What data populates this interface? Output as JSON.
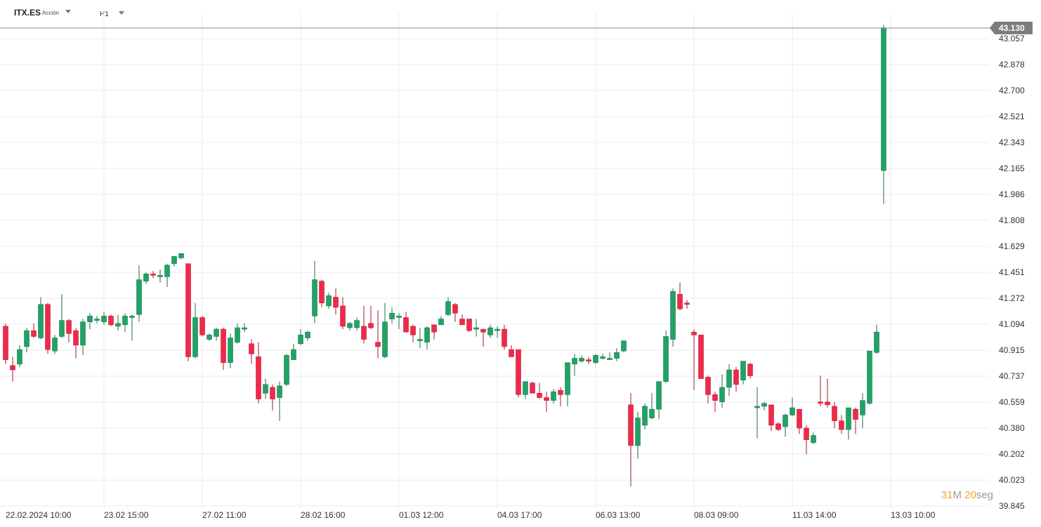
{
  "toolbar": {
    "symbol": "ITX.ES",
    "instrument_type": "Acción",
    "timeframe": "H1"
  },
  "price_label": "43.130",
  "countdown": {
    "minutes": "31",
    "minutes_unit": "M",
    "seconds": "20",
    "seconds_unit": "seg"
  },
  "colors": {
    "up": "#21a366",
    "down": "#ee2a4a",
    "grid": "#ebebeb",
    "axis_text": "#333333",
    "price_line": "#8a8a8a",
    "price_label_bg": "#7c7c7c"
  },
  "chart_data": {
    "type": "candlestick",
    "title": "",
    "ylim": [
      39.845,
      43.23
    ],
    "y_ticks": [
      "43.057",
      "42.878",
      "42.700",
      "42.521",
      "42.343",
      "42.165",
      "41.986",
      "41.808",
      "41.629",
      "41.451",
      "41.272",
      "41.094",
      "40.915",
      "40.737",
      "40.559",
      "40.380",
      "40.202",
      "40.023",
      "39.845"
    ],
    "x_ticks": [
      {
        "date": "22.02.2024",
        "time": "10:00",
        "index": 0
      },
      {
        "date": "23.02",
        "time": "15:00",
        "index": 14
      },
      {
        "date": "27.02",
        "time": "11:00",
        "index": 28
      },
      {
        "date": "28.02",
        "time": "16:00",
        "index": 42
      },
      {
        "date": "01.03",
        "time": "12:00",
        "index": 56
      },
      {
        "date": "04.03",
        "time": "17:00",
        "index": 70
      },
      {
        "date": "06.03",
        "time": "13:00",
        "index": 84
      },
      {
        "date": "08.03",
        "time": "09:00",
        "index": 98
      },
      {
        "date": "11.03",
        "time": "14:00",
        "index": 112
      },
      {
        "date": "13.03",
        "time": "10:00",
        "index": 126
      }
    ],
    "ohlc": [
      [
        41.08,
        41.1,
        40.82,
        40.85
      ],
      [
        40.81,
        40.87,
        40.7,
        40.78
      ],
      [
        40.82,
        40.95,
        40.8,
        40.92
      ],
      [
        40.94,
        41.07,
        40.9,
        41.05
      ],
      [
        41.05,
        41.1,
        41.0,
        41.01
      ],
      [
        41.0,
        41.28,
        40.99,
        41.23
      ],
      [
        41.23,
        41.24,
        40.89,
        40.92
      ],
      [
        40.91,
        41.02,
        40.89,
        41.0
      ],
      [
        41.01,
        41.3,
        41.0,
        41.12
      ],
      [
        41.12,
        41.13,
        40.97,
        41.03
      ],
      [
        41.05,
        41.07,
        40.86,
        40.95
      ],
      [
        40.95,
        41.13,
        40.88,
        41.11
      ],
      [
        41.11,
        41.17,
        41.06,
        41.15
      ],
      [
        41.12,
        41.15,
        41.1,
        41.13
      ],
      [
        41.11,
        41.18,
        41.09,
        41.15
      ],
      [
        41.15,
        41.16,
        41.08,
        41.09
      ],
      [
        41.08,
        41.16,
        41.05,
        41.1
      ],
      [
        41.09,
        41.17,
        41.04,
        41.15
      ],
      [
        41.14,
        41.16,
        40.98,
        41.15
      ],
      [
        41.16,
        41.5,
        41.11,
        41.4
      ],
      [
        41.39,
        41.45,
        41.37,
        41.44
      ],
      [
        41.44,
        41.46,
        41.41,
        41.43
      ],
      [
        41.42,
        41.47,
        41.38,
        41.43
      ],
      [
        41.42,
        41.51,
        41.35,
        41.5
      ],
      [
        41.51,
        41.56,
        41.49,
        41.56
      ],
      [
        41.55,
        41.58,
        41.54,
        41.58
      ],
      [
        41.51,
        41.51,
        40.84,
        40.87
      ],
      [
        40.87,
        41.24,
        40.86,
        41.14
      ],
      [
        41.14,
        41.15,
        41.01,
        41.02
      ],
      [
        40.99,
        41.03,
        40.98,
        41.02
      ],
      [
        41.01,
        41.07,
        40.98,
        41.06
      ],
      [
        41.06,
        41.07,
        40.78,
        40.83
      ],
      [
        40.83,
        41.03,
        40.79,
        41.0
      ],
      [
        40.97,
        41.1,
        40.96,
        41.07
      ],
      [
        41.06,
        41.1,
        41.04,
        41.07
      ],
      [
        40.96,
        40.99,
        40.82,
        40.89
      ],
      [
        40.87,
        40.97,
        40.55,
        40.58
      ],
      [
        40.62,
        40.72,
        40.58,
        40.68
      ],
      [
        40.66,
        40.68,
        40.5,
        40.58
      ],
      [
        40.59,
        40.7,
        40.43,
        40.67
      ],
      [
        40.68,
        40.89,
        40.67,
        40.88
      ],
      [
        40.85,
        40.96,
        40.85,
        40.92
      ],
      [
        40.96,
        41.06,
        40.95,
        41.02
      ],
      [
        41.0,
        41.05,
        40.98,
        41.04
      ],
      [
        41.15,
        41.53,
        41.1,
        41.4
      ],
      [
        41.39,
        41.4,
        41.21,
        41.24
      ],
      [
        41.22,
        41.31,
        41.2,
        41.29
      ],
      [
        41.28,
        41.34,
        41.16,
        41.21
      ],
      [
        41.22,
        41.28,
        41.06,
        41.08
      ],
      [
        41.07,
        41.11,
        41.05,
        41.1
      ],
      [
        41.07,
        41.14,
        41.05,
        41.12
      ],
      [
        41.08,
        41.22,
        40.96,
        40.99
      ],
      [
        41.1,
        41.22,
        41.06,
        41.07
      ],
      [
        40.97,
        41.19,
        40.86,
        40.94
      ],
      [
        40.87,
        41.24,
        40.86,
        41.11
      ],
      [
        41.13,
        41.21,
        41.1,
        41.17
      ],
      [
        41.15,
        41.17,
        41.06,
        41.15
      ],
      [
        41.14,
        41.18,
        41.04,
        41.04
      ],
      [
        41.08,
        41.09,
        40.97,
        41.02
      ],
      [
        40.98,
        41.07,
        40.93,
        40.99
      ],
      [
        40.97,
        41.08,
        40.92,
        41.07
      ],
      [
        41.09,
        41.09,
        40.99,
        41.04
      ],
      [
        41.09,
        41.15,
        41.09,
        41.13
      ],
      [
        41.16,
        41.28,
        41.15,
        41.25
      ],
      [
        41.23,
        41.24,
        41.11,
        41.17
      ],
      [
        41.13,
        41.16,
        41.09,
        41.09
      ],
      [
        41.13,
        41.13,
        41.04,
        41.05
      ],
      [
        41.06,
        41.13,
        41.01,
        41.07
      ],
      [
        41.06,
        41.06,
        40.94,
        41.04
      ],
      [
        41.02,
        41.09,
        41.0,
        41.07
      ],
      [
        41.05,
        41.08,
        41.0,
        41.06
      ],
      [
        41.06,
        41.09,
        40.92,
        40.94
      ],
      [
        40.92,
        40.95,
        40.87,
        40.87
      ],
      [
        40.92,
        40.92,
        40.59,
        40.61
      ],
      [
        40.61,
        40.7,
        40.58,
        40.7
      ],
      [
        40.69,
        40.7,
        40.62,
        40.62
      ],
      [
        40.62,
        40.69,
        40.58,
        40.59
      ],
      [
        40.59,
        40.63,
        40.49,
        40.57
      ],
      [
        40.57,
        40.65,
        40.55,
        40.63
      ],
      [
        40.64,
        40.66,
        40.53,
        40.61
      ],
      [
        40.61,
        40.81,
        40.53,
        40.83
      ],
      [
        40.82,
        40.89,
        40.74,
        40.86
      ],
      [
        40.84,
        40.88,
        40.83,
        40.86
      ],
      [
        40.85,
        40.87,
        40.82,
        40.84
      ],
      [
        40.83,
        40.89,
        40.82,
        40.88
      ],
      [
        40.86,
        40.89,
        40.85,
        40.87
      ],
      [
        40.86,
        40.9,
        40.85,
        40.86
      ],
      [
        40.86,
        40.93,
        40.84,
        40.9
      ],
      [
        40.91,
        40.98,
        40.9,
        40.98
      ],
      [
        40.54,
        40.62,
        39.98,
        40.26
      ],
      [
        40.26,
        40.49,
        40.17,
        40.45
      ],
      [
        40.4,
        40.55,
        40.37,
        40.53
      ],
      [
        40.45,
        40.62,
        40.44,
        40.51
      ],
      [
        40.51,
        40.7,
        40.44,
        40.7
      ],
      [
        40.7,
        41.05,
        40.69,
        41.01
      ],
      [
        40.99,
        41.34,
        40.94,
        41.32
      ],
      [
        41.3,
        41.38,
        41.19,
        41.2
      ],
      [
        41.24,
        41.26,
        41.2,
        41.23
      ],
      [
        41.04,
        41.06,
        40.64,
        41.02
      ],
      [
        41.02,
        41.02,
        40.74,
        40.72
      ],
      [
        40.73,
        40.74,
        40.55,
        40.61
      ],
      [
        40.61,
        40.63,
        40.49,
        40.57
      ],
      [
        40.56,
        40.75,
        40.52,
        40.66
      ],
      [
        40.66,
        40.82,
        40.6,
        40.78
      ],
      [
        40.78,
        40.8,
        40.63,
        40.68
      ],
      [
        40.71,
        40.84,
        40.68,
        40.84
      ],
      [
        40.82,
        40.83,
        40.72,
        40.74
      ],
      [
        40.52,
        40.66,
        40.31,
        40.53
      ],
      [
        40.53,
        40.56,
        40.5,
        40.55
      ],
      [
        40.54,
        40.54,
        40.36,
        40.4
      ],
      [
        40.41,
        40.42,
        40.36,
        40.37
      ],
      [
        40.39,
        40.48,
        40.32,
        40.47
      ],
      [
        40.47,
        40.59,
        40.46,
        40.52
      ],
      [
        40.51,
        40.51,
        40.34,
        40.38
      ],
      [
        40.38,
        40.4,
        40.2,
        40.3
      ],
      [
        40.28,
        40.35,
        40.27,
        40.33
      ],
      [
        40.56,
        40.74,
        40.53,
        40.55
      ],
      [
        40.56,
        40.72,
        40.52,
        40.54
      ],
      [
        40.53,
        40.56,
        40.38,
        40.43
      ],
      [
        40.43,
        40.47,
        40.34,
        40.37
      ],
      [
        40.37,
        40.52,
        40.3,
        40.52
      ],
      [
        40.51,
        40.52,
        40.34,
        40.44
      ],
      [
        40.47,
        40.62,
        40.38,
        40.57
      ],
      [
        40.55,
        40.91,
        40.54,
        40.91
      ],
      [
        40.9,
        41.09,
        40.89,
        41.04
      ],
      [
        42.15,
        43.15,
        41.92,
        43.13
      ]
    ]
  }
}
